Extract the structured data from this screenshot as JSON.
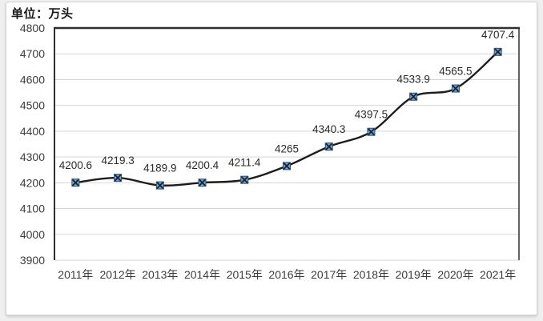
{
  "chart": {
    "unit_label": "单位：万头"
  },
  "chart_data": {
    "type": "line",
    "title": "",
    "unit_label": "单位：万头",
    "categories": [
      "2011年",
      "2012年",
      "2013年",
      "2014年",
      "2015年",
      "2016年",
      "2017年",
      "2018年",
      "2019年",
      "2020年",
      "2021年"
    ],
    "series": [
      {
        "name": "",
        "values": [
          4200.6,
          4219.3,
          4189.9,
          4200.4,
          4211.4,
          4265,
          4340.3,
          4397.5,
          4533.9,
          4565.5,
          4707.4
        ]
      }
    ],
    "data_labels": [
      "4200.6",
      "4219.3",
      "4189.9",
      "4200.4",
      "4211.4",
      "4265",
      "4340.3",
      "4397.5",
      "4533.9",
      "4565.5",
      "4707.4"
    ],
    "ylim": [
      3900,
      4800
    ],
    "ytick_step": 100,
    "grid": true,
    "legend_position": "none",
    "line_color": "#1c1c1c",
    "marker": "x-square",
    "marker_fill": "#7fa1c4",
    "marker_border": "#2a4a73",
    "marker_x_color": "#10243c",
    "grid_color": "#d7d7d7",
    "axis_color": "#2f2f2f",
    "tick_text_color": "#3d3d3d",
    "data_label_color": "#2b2b2b"
  }
}
